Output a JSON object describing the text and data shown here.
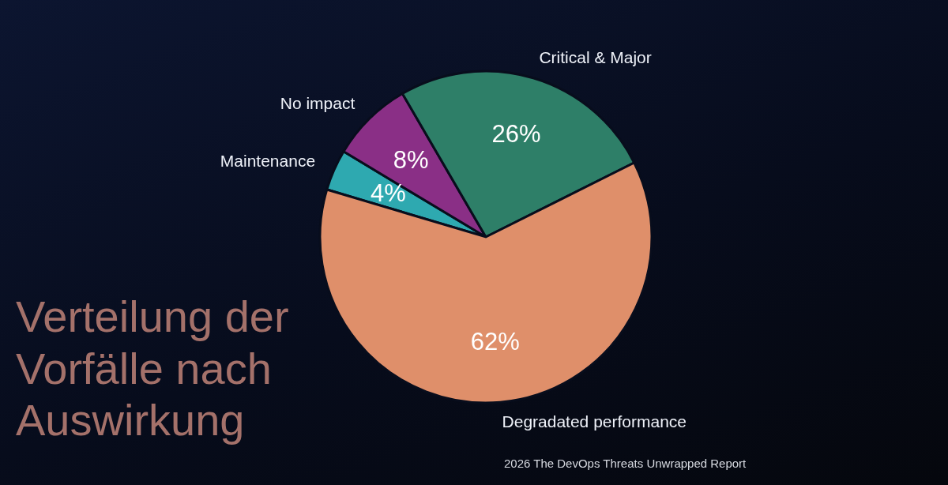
{
  "chart_data": {
    "type": "pie",
    "title": "Verteilung der Vorfälle nach Auswirkung",
    "categories": [
      "Maintenance",
      "No impact",
      "Critical & Major",
      "Degradated performance"
    ],
    "values": [
      4,
      8,
      26,
      62
    ],
    "value_labels": [
      "4%",
      "8%",
      "26%",
      "62%"
    ],
    "colors": [
      "#2ea9b0",
      "#8a2f86",
      "#2e7f68",
      "#df8f6a"
    ],
    "annotations": [
      "2026 The DevOps Threats Unwrapped Report"
    ]
  }
}
